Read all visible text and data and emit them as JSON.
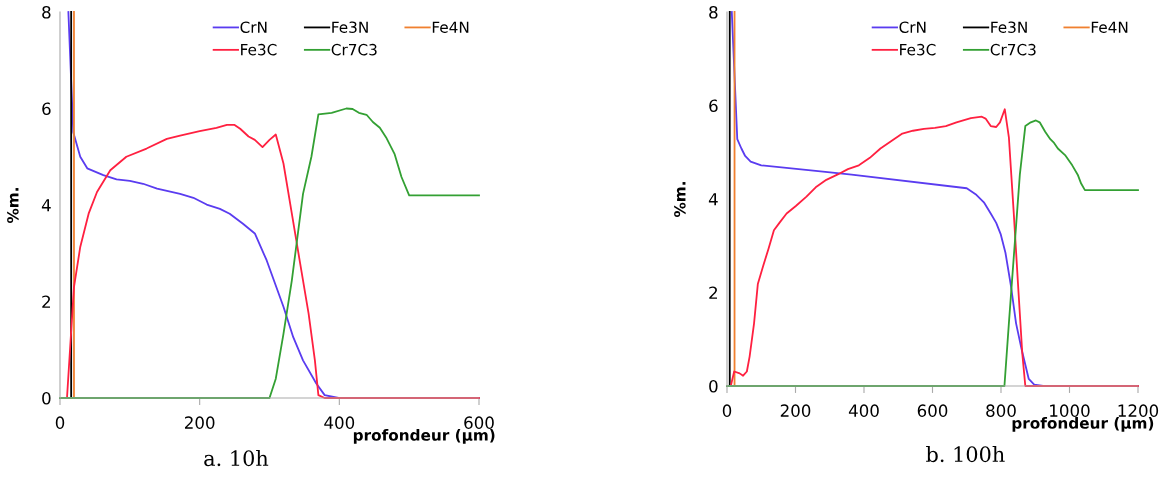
{
  "chart_data": [
    {
      "type": "line",
      "xlabel": "profondeur (µm)",
      "ylabel": "%m.",
      "annotations": [
        "a. 10h"
      ],
      "xlim": [
        0,
        600
      ],
      "xticks": [
        0,
        200,
        400,
        600
      ],
      "ylim": [
        0,
        8
      ],
      "yticks": [
        0,
        2,
        4,
        6,
        8
      ],
      "grid": false,
      "legend": "top right",
      "series": [
        {
          "name": "CrN",
          "color": "#5a3cf0",
          "x": [
            12,
            19,
            29,
            39,
            62,
            81,
            100,
            119,
            139,
            172,
            191,
            210,
            229,
            243,
            262,
            279,
            296,
            320,
            334,
            348,
            367,
            379,
            399,
            600
          ],
          "values": [
            8,
            5.51,
            5.0,
            4.76,
            4.62,
            4.53,
            4.5,
            4.44,
            4.34,
            4.23,
            4.15,
            4.01,
            3.92,
            3.82,
            3.61,
            3.41,
            2.85,
            1.89,
            1.26,
            0.78,
            0.3,
            0.06,
            0,
            0
          ]
        },
        {
          "name": "Fe3N",
          "color": "#000000",
          "x": [
            16,
            16
          ],
          "values": [
            8,
            0
          ]
        },
        {
          "name": "Fe4N",
          "color": "#f08030",
          "x": [
            20,
            20
          ],
          "values": [
            8,
            0
          ]
        },
        {
          "name": "Fe3C",
          "color": "#ff2040",
          "x": [
            10,
            20,
            29,
            41,
            53,
            72,
            95,
            124,
            153,
            172,
            200,
            224,
            239,
            250,
            258,
            270,
            279,
            290,
            300,
            309,
            320,
            332,
            344,
            356,
            365,
            370,
            379,
            600
          ],
          "values": [
            0,
            2.3,
            3.13,
            3.82,
            4.27,
            4.72,
            5.0,
            5.17,
            5.37,
            5.44,
            5.53,
            5.6,
            5.66,
            5.66,
            5.58,
            5.42,
            5.35,
            5.2,
            5.35,
            5.46,
            4.86,
            3.82,
            2.78,
            1.75,
            0.78,
            0.06,
            0,
            0
          ]
        },
        {
          "name": "Cr7C3",
          "color": "#33a033",
          "x": [
            0,
            300,
            309,
            320,
            332,
            348,
            360,
            370,
            389,
            410,
            419,
            428,
            439,
            448,
            458,
            467,
            479,
            489,
            500,
            600
          ],
          "values": [
            0,
            0,
            0.4,
            1.33,
            2.44,
            4.23,
            5.0,
            5.88,
            5.91,
            6.0,
            5.99,
            5.91,
            5.87,
            5.72,
            5.6,
            5.4,
            5.06,
            4.58,
            4.2,
            4.2
          ]
        }
      ]
    },
    {
      "type": "line",
      "xlabel": "profondeur (µm)",
      "ylabel": "%m.",
      "annotations": [
        "b. 100h"
      ],
      "xlim": [
        0,
        1200
      ],
      "xticks": [
        0,
        200,
        400,
        600,
        800,
        1000,
        1200
      ],
      "ylim": [
        0,
        8
      ],
      "yticks": [
        0,
        2,
        4,
        6,
        8
      ],
      "grid": false,
      "legend": "top right",
      "series": [
        {
          "name": "CrN",
          "color": "#5a3cf0",
          "x": [
            14,
            30,
            42,
            53,
            69,
            100,
            259,
            364,
            700,
            728,
            750,
            770,
            786,
            799,
            813,
            829,
            844,
            860,
            881,
            897,
            923,
            1200
          ],
          "values": [
            8,
            5.28,
            5.08,
            4.92,
            4.8,
            4.72,
            4.6,
            4.52,
            4.23,
            4.09,
            3.93,
            3.69,
            3.49,
            3.25,
            2.85,
            2.14,
            1.34,
            0.79,
            0.15,
            0.03,
            0,
            0
          ]
        },
        {
          "name": "Fe3N",
          "color": "#000000",
          "x": [
            8,
            8
          ],
          "values": [
            8,
            0
          ]
        },
        {
          "name": "Fe4N",
          "color": "#f08030",
          "x": [
            22,
            22
          ],
          "values": [
            8,
            0
          ]
        },
        {
          "name": "Fe3C",
          "color": "#ff2040",
          "x": [
            11,
            21,
            37,
            47,
            58,
            66,
            79,
            90,
            106,
            121,
            137,
            153,
            174,
            201,
            232,
            259,
            290,
            322,
            353,
            385,
            417,
            448,
            480,
            512,
            543,
            575,
            607,
            639,
            670,
            712,
            744,
            755,
            770,
            786,
            797,
            811,
            823,
            837,
            850,
            862,
            871,
            1200
          ],
          "values": [
            0,
            0.31,
            0.27,
            0.22,
            0.31,
            0.63,
            1.34,
            2.18,
            2.58,
            2.93,
            3.33,
            3.49,
            3.69,
            3.85,
            4.05,
            4.25,
            4.41,
            4.52,
            4.64,
            4.72,
            4.88,
            5.08,
            5.24,
            5.4,
            5.46,
            5.5,
            5.52,
            5.56,
            5.64,
            5.73,
            5.76,
            5.72,
            5.56,
            5.54,
            5.64,
            5.92,
            5.32,
            3.73,
            2.14,
            0.71,
            0,
            0
          ]
        },
        {
          "name": "Cr7C3",
          "color": "#33a033",
          "x": [
            0,
            810,
            823,
            839,
            855,
            871,
            887,
            902,
            913,
            929,
            944,
            955,
            966,
            987,
            1008,
            1024,
            1034,
            1045,
            1200
          ],
          "values": [
            0,
            0,
            1.34,
            2.93,
            4.52,
            5.56,
            5.64,
            5.68,
            5.64,
            5.44,
            5.28,
            5.2,
            5.08,
            4.94,
            4.72,
            4.52,
            4.33,
            4.19,
            4.19
          ]
        }
      ]
    }
  ]
}
